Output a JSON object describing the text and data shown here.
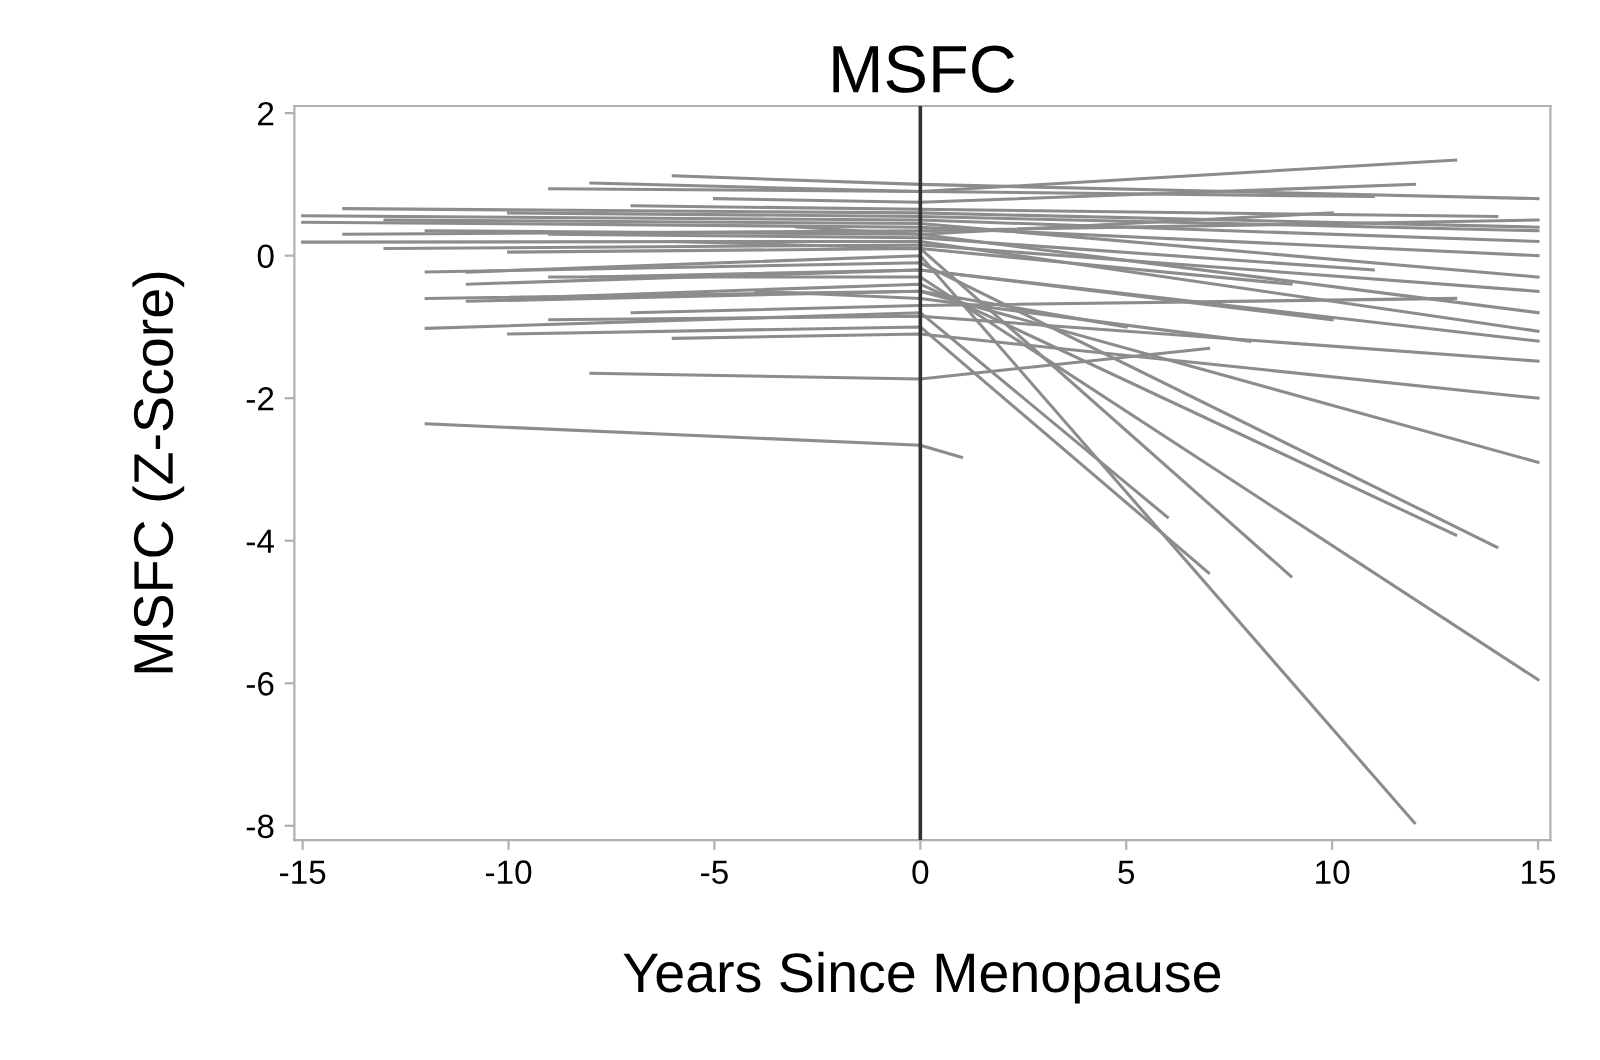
{
  "chart_data": {
    "type": "line",
    "title": "MSFC",
    "xlabel": "Years Since Menopause",
    "ylabel": "MSFC (Z-Score)",
    "xlim": [
      -15.2,
      15.3
    ],
    "ylim": [
      -8.2,
      2.1
    ],
    "xticks": [
      -15,
      -10,
      -5,
      0,
      5,
      10,
      15
    ],
    "yticks": [
      -8,
      -6,
      -4,
      -2,
      0,
      2
    ],
    "ref_lines": [
      {
        "axis": "x",
        "value": 0,
        "color": "#333333"
      }
    ],
    "series": [
      {
        "x": [
          -15,
          0,
          15
        ],
        "values": [
          0.19,
          0.2,
          -1.06
        ],
        "color": "#8c8c8c"
      },
      {
        "x": [
          -12,
          0,
          1
        ],
        "values": [
          -2.36,
          -2.66,
          -2.83
        ],
        "color": "#8c8c8c"
      },
      {
        "x": [
          -8,
          0,
          7
        ],
        "values": [
          -1.65,
          -1.73,
          -1.3
        ],
        "color": "#8c8c8c"
      },
      {
        "x": [
          -12,
          0,
          6
        ],
        "values": [
          -1.02,
          -0.8,
          -3.67
        ],
        "color": "#8c8c8c"
      },
      {
        "x": [
          -10,
          0,
          7
        ],
        "values": [
          -1.1,
          -1.0,
          -4.45
        ],
        "color": "#8c8c8c"
      },
      {
        "x": [
          -6,
          0,
          15
        ],
        "values": [
          -1.16,
          -1.1,
          -2.0
        ],
        "color": "#8c8c8c"
      },
      {
        "x": [
          -9,
          0,
          15
        ],
        "values": [
          -0.9,
          -0.85,
          -1.48
        ],
        "color": "#8c8c8c"
      },
      {
        "x": [
          -11,
          0,
          15
        ],
        "values": [
          -0.64,
          -0.5,
          -2.9
        ],
        "color": "#8c8c8c"
      },
      {
        "x": [
          -10,
          0,
          13
        ],
        "values": [
          -0.6,
          -0.4,
          -3.92
        ],
        "color": "#8c8c8c"
      },
      {
        "x": [
          -12,
          0,
          14
        ],
        "values": [
          -0.23,
          -0.1,
          -4.09
        ],
        "color": "#8c8c8c"
      },
      {
        "x": [
          -11,
          0,
          12
        ],
        "values": [
          -0.23,
          0.0,
          -7.96
        ],
        "color": "#8c8c8c"
      },
      {
        "x": [
          -10,
          0,
          9
        ],
        "values": [
          0.05,
          0.1,
          -4.5
        ],
        "color": "#8c8c8c"
      },
      {
        "x": [
          -9,
          0,
          15
        ],
        "values": [
          -0.3,
          -0.3,
          -5.95
        ],
        "color": "#8c8c8c"
      },
      {
        "x": [
          -6,
          0,
          15
        ],
        "values": [
          1.12,
          1.0,
          0.8
        ],
        "color": "#8c8c8c"
      },
      {
        "x": [
          -9,
          0,
          13
        ],
        "values": [
          0.94,
          0.9,
          1.34
        ],
        "color": "#8c8c8c"
      },
      {
        "x": [
          -8,
          0,
          11
        ],
        "values": [
          1.02,
          0.9,
          0.83
        ],
        "color": "#8c8c8c"
      },
      {
        "x": [
          -14,
          0,
          15
        ],
        "values": [
          0.66,
          0.6,
          0.4
        ],
        "color": "#8c8c8c"
      },
      {
        "x": [
          -15,
          0,
          15
        ],
        "values": [
          0.56,
          0.5,
          0.2
        ],
        "color": "#8c8c8c"
      },
      {
        "x": [
          -15,
          0,
          15
        ],
        "values": [
          0.47,
          0.4,
          0.0
        ],
        "color": "#8c8c8c"
      },
      {
        "x": [
          -13,
          0,
          15
        ],
        "values": [
          0.5,
          0.45,
          -0.3
        ],
        "color": "#8c8c8c"
      },
      {
        "x": [
          -12,
          0,
          15
        ],
        "values": [
          0.35,
          0.3,
          -0.8
        ],
        "color": "#8c8c8c"
      },
      {
        "x": [
          -10,
          0,
          15
        ],
        "values": [
          0.6,
          0.55,
          0.35
        ],
        "color": "#8c8c8c"
      },
      {
        "x": [
          -7,
          0,
          14
        ],
        "values": [
          0.7,
          0.65,
          0.55
        ],
        "color": "#8c8c8c"
      },
      {
        "x": [
          -5,
          0,
          12
        ],
        "values": [
          0.8,
          0.75,
          1.0
        ],
        "color": "#8c8c8c"
      },
      {
        "x": [
          -11,
          0,
          15
        ],
        "values": [
          -0.4,
          -0.2,
          -1.2
        ],
        "color": "#8c8c8c"
      },
      {
        "x": [
          -8,
          0,
          10
        ],
        "values": [
          -0.3,
          -0.2,
          -0.9
        ],
        "color": "#8c8c8c"
      },
      {
        "x": [
          -6,
          0,
          9
        ],
        "values": [
          0.2,
          0.1,
          -0.4
        ],
        "color": "#8c8c8c"
      },
      {
        "x": [
          -13,
          0,
          15
        ],
        "values": [
          0.1,
          0.15,
          -0.5
        ],
        "color": "#8c8c8c"
      },
      {
        "x": [
          -4,
          0,
          8
        ],
        "values": [
          -0.5,
          -0.6,
          -1.2
        ],
        "color": "#8c8c8c"
      },
      {
        "x": [
          -3,
          0,
          10
        ],
        "values": [
          0.4,
          0.3,
          0.6
        ],
        "color": "#8c8c8c"
      },
      {
        "x": [
          -12,
          0,
          5
        ],
        "values": [
          -0.6,
          -0.5,
          -1.0
        ],
        "color": "#8c8c8c"
      },
      {
        "x": [
          -7,
          0,
          13
        ],
        "values": [
          -0.8,
          -0.7,
          -0.6
        ],
        "color": "#8c8c8c"
      },
      {
        "x": [
          -9,
          0,
          11
        ],
        "values": [
          0.3,
          0.25,
          -0.2
        ],
        "color": "#8c8c8c"
      },
      {
        "x": [
          -14,
          0,
          15
        ],
        "values": [
          0.3,
          0.35,
          0.5
        ],
        "color": "#8c8c8c"
      }
    ]
  }
}
